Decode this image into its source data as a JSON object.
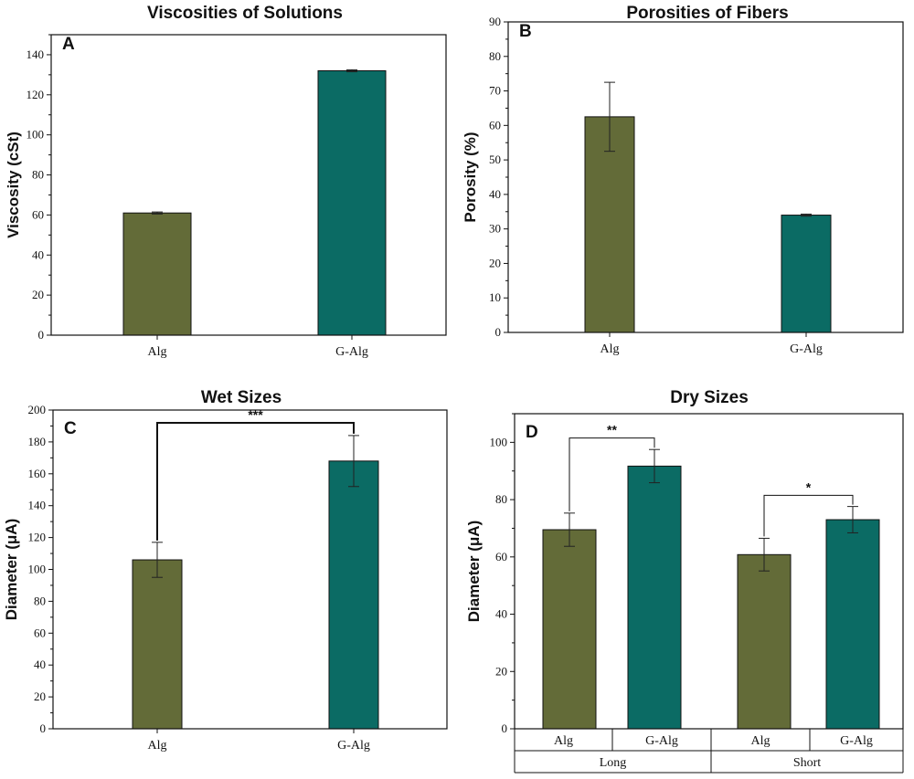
{
  "colors": {
    "alg": "#636b38",
    "galg": "#0b6b64",
    "axis": "#111111"
  },
  "chart_data": [
    {
      "type": "bar",
      "panel": "A",
      "title": "Viscosities of Solutions",
      "ylabel": "Viscosity (cSt)",
      "xlabel": "",
      "categories": [
        "Alg",
        "G-Alg"
      ],
      "values": [
        61,
        132
      ],
      "errors": [
        0.5,
        0.5
      ],
      "ylim": [
        0,
        150
      ],
      "yticks": [
        "0",
        "20",
        "40",
        "60",
        "80",
        "100",
        "120",
        "140"
      ],
      "significance": []
    },
    {
      "type": "bar",
      "panel": "B",
      "title": "Porosities of Fibers",
      "ylabel": "Porosity (%)",
      "xlabel": "",
      "categories": [
        "Alg",
        "G-Alg"
      ],
      "values": [
        62.5,
        34
      ],
      "errors": [
        10,
        0.3
      ],
      "ylim": [
        0,
        90
      ],
      "yticks": [
        "0",
        "10",
        "20",
        "30",
        "40",
        "50",
        "60",
        "70",
        "80",
        "90"
      ],
      "significance": []
    },
    {
      "type": "bar",
      "panel": "C",
      "title": "Wet Sizes",
      "ylabel": "Diameter (μA)",
      "xlabel": "",
      "categories": [
        "Alg",
        "G-Alg"
      ],
      "values": [
        106,
        168
      ],
      "errors": [
        11,
        16
      ],
      "ylim": [
        0,
        200
      ],
      "yticks": [
        "0",
        "20",
        "40",
        "60",
        "80",
        "100",
        "120",
        "140",
        "160",
        "180",
        "200"
      ],
      "significance": [
        {
          "from": 0,
          "to": 1,
          "label": "***",
          "y": 192
        }
      ]
    },
    {
      "type": "bar",
      "panel": "D",
      "title": "Dry Sizes",
      "ylabel": "Diameter (μA)",
      "xlabel": "",
      "categories": [
        "Alg",
        "G-Alg",
        "Alg",
        "G-Alg"
      ],
      "groups": [
        "Long",
        "Short"
      ],
      "values": [
        69.5,
        91.7,
        60.8,
        73
      ],
      "errors": [
        5.8,
        5.8,
        5.7,
        4.6
      ],
      "ylim": [
        0,
        110
      ],
      "yticks": [
        "0",
        "20",
        "40",
        "60",
        "80",
        "100"
      ],
      "significance": [
        {
          "from": 0,
          "to": 1,
          "label": "**",
          "y": 101.5
        },
        {
          "from": 2,
          "to": 3,
          "label": "*",
          "y": 81.5
        }
      ]
    }
  ]
}
